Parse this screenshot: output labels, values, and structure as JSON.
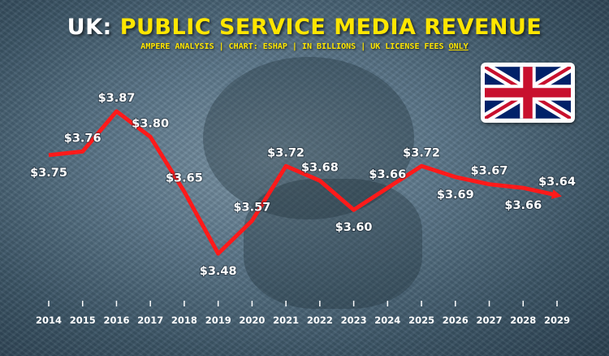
{
  "chart_data": {
    "type": "line",
    "title_prefix": "UK:",
    "title_main": "PUBLIC SERVICE MEDIA REVENUE",
    "subtitle_main": "AMPERE ANALYSIS | CHART: ESHAP | IN BILLIONS | UK LICENSE FEES",
    "subtitle_emphasis": "ONLY",
    "x": [
      "2014",
      "2015",
      "2016",
      "2017",
      "2018",
      "2019",
      "2020",
      "2021",
      "2022",
      "2023",
      "2024",
      "2025",
      "2026",
      "2027",
      "2028",
      "2029"
    ],
    "series": [
      {
        "values": [
          3.75,
          3.76,
          3.87,
          3.8,
          3.65,
          3.48,
          3.57,
          3.72,
          3.68,
          3.6,
          3.66,
          3.72,
          3.69,
          3.67,
          3.66,
          3.64
        ]
      }
    ],
    "data_labels": [
      "$3.75",
      "$3.76",
      "$3.87",
      "$3.80",
      "$3.65",
      "$3.48",
      "$3.57",
      "$3.72",
      "$3.68",
      "$3.60",
      "$3.66",
      "$3.72",
      "$3.69",
      "$3.67",
      "$3.66",
      "$3.64"
    ],
    "grid": false,
    "line_color": "#ff1a1a",
    "title_accent_color": "#ffe600"
  },
  "flag": {
    "icon": "uk-flag-icon"
  }
}
